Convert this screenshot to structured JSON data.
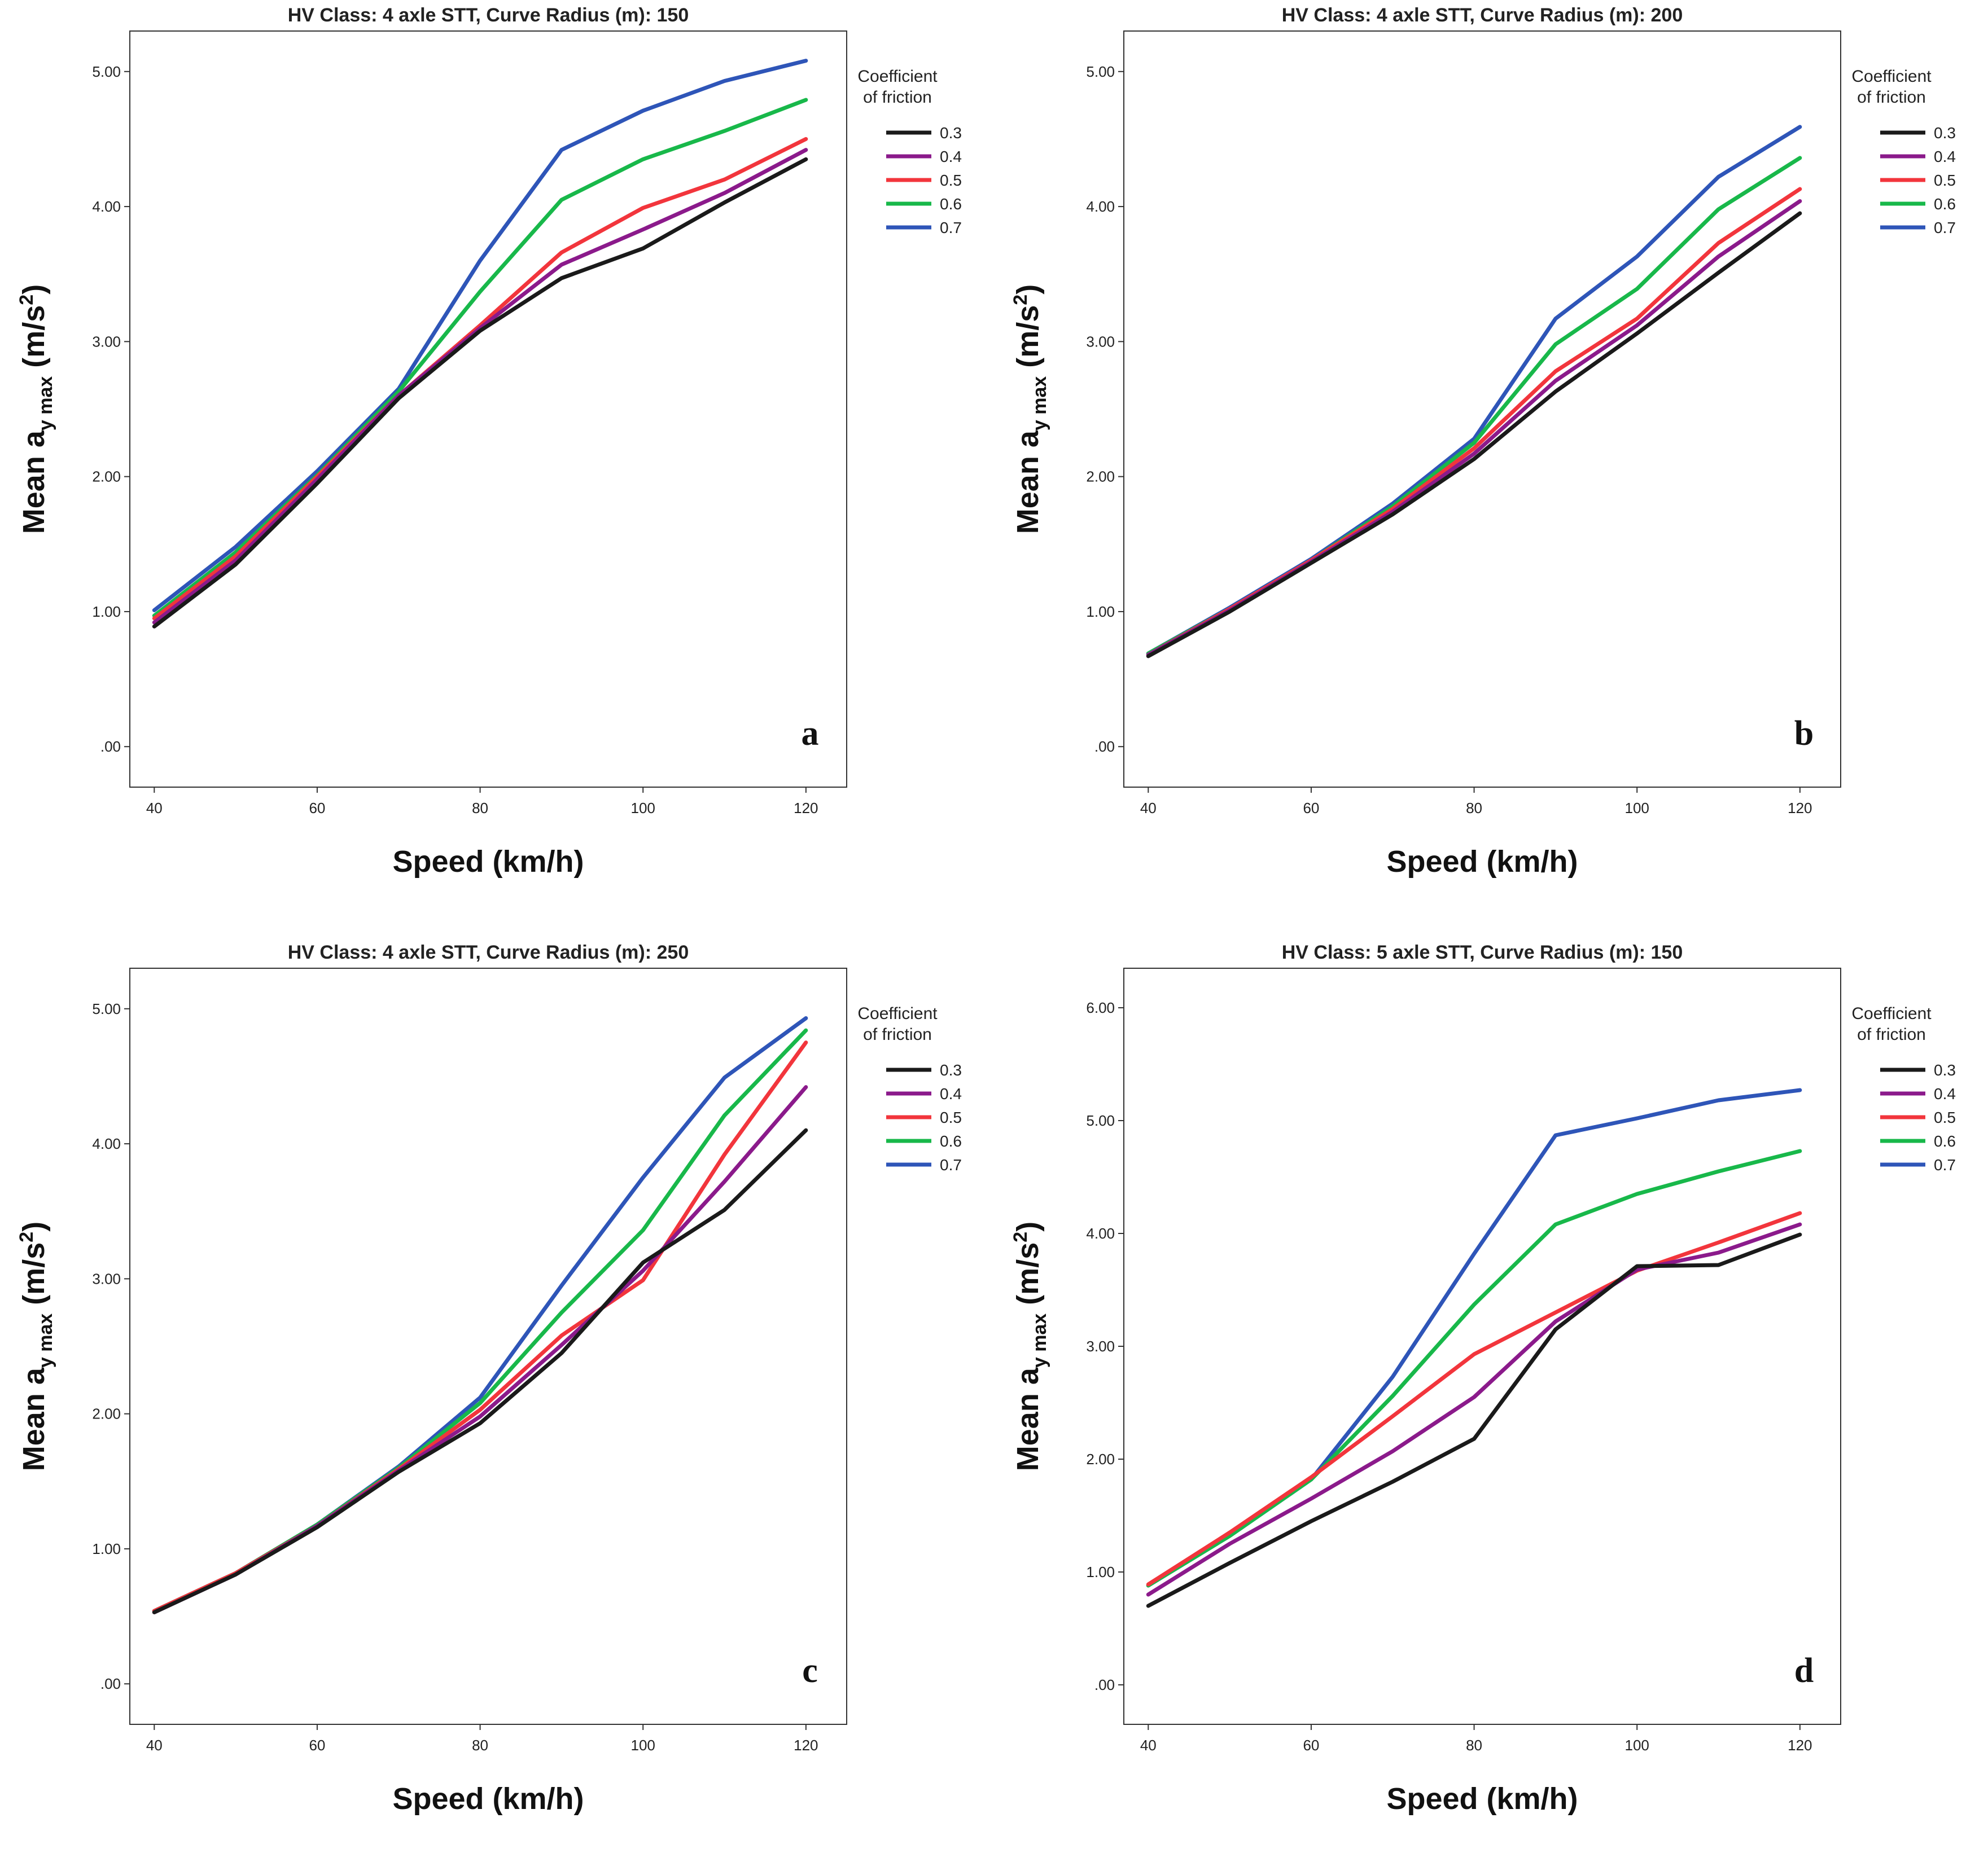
{
  "chart_data": [
    {
      "type": "line",
      "panel_label": "a",
      "title": "HV Class: 4 axle STT, Curve Radius (m): 150",
      "xlabel": "Speed (km/h)",
      "ylabel": "Mean a_y max (m/s²)",
      "ylabel_parts": {
        "main": "Mean a",
        "sub": "y max",
        "unit": " (m/s",
        "sup": "2",
        "close": ")"
      },
      "x": [
        40,
        50,
        60,
        70,
        80,
        90,
        100,
        110,
        120
      ],
      "xlim": [
        37,
        125
      ],
      "ylim": [
        -0.3,
        5.3
      ],
      "xticks": [
        40,
        60,
        80,
        100,
        120
      ],
      "xtick_labels": [
        "40",
        "60",
        "80",
        "100",
        "120"
      ],
      "yticks": [
        0,
        1,
        2,
        3,
        4,
        5
      ],
      "ytick_labels": [
        ".00",
        "1.00",
        "2.00",
        "3.00",
        "4.00",
        "5.00"
      ],
      "legend_title": [
        "Coefficient",
        "of friction"
      ],
      "series": [
        {
          "name": "0.3",
          "color": "#1a1a1a",
          "values": [
            0.89,
            1.35,
            1.95,
            2.58,
            3.08,
            3.47,
            3.69,
            4.03,
            4.35
          ]
        },
        {
          "name": "0.4",
          "color": "#8b1a8b",
          "values": [
            0.92,
            1.38,
            1.98,
            2.6,
            3.1,
            3.57,
            3.83,
            4.1,
            4.42
          ]
        },
        {
          "name": "0.5",
          "color": "#f2353c",
          "values": [
            0.95,
            1.41,
            2.0,
            2.6,
            3.12,
            3.66,
            3.99,
            4.2,
            4.5
          ]
        },
        {
          "name": "0.6",
          "color": "#18b84a",
          "values": [
            0.97,
            1.44,
            2.01,
            2.63,
            3.37,
            4.05,
            4.35,
            4.56,
            4.79
          ]
        },
        {
          "name": "0.7",
          "color": "#2e55b8",
          "values": [
            1.01,
            1.48,
            2.04,
            2.65,
            3.6,
            4.42,
            4.71,
            4.93,
            5.08
          ]
        }
      ]
    },
    {
      "type": "line",
      "panel_label": "b",
      "title": "HV Class: 4 axle STT, Curve Radius (m): 200",
      "xlabel": "Speed (km/h)",
      "ylabel": "Mean a_y max (m/s²)",
      "ylabel_parts": {
        "main": "Mean a",
        "sub": "y max",
        "unit": " (m/s",
        "sup": "2",
        "close": ")"
      },
      "x": [
        40,
        50,
        60,
        70,
        80,
        90,
        100,
        110,
        120
      ],
      "xlim": [
        37,
        125
      ],
      "ylim": [
        -0.3,
        5.3
      ],
      "xticks": [
        40,
        60,
        80,
        100,
        120
      ],
      "xtick_labels": [
        "40",
        "60",
        "80",
        "100",
        "120"
      ],
      "yticks": [
        0,
        1,
        2,
        3,
        4,
        5
      ],
      "ytick_labels": [
        ".00",
        "1.00",
        "2.00",
        "3.00",
        "4.00",
        "5.00"
      ],
      "legend_title": [
        "Coefficient",
        "of friction"
      ],
      "series": [
        {
          "name": "0.3",
          "color": "#1a1a1a",
          "values": [
            0.67,
            1.0,
            1.36,
            1.72,
            2.13,
            2.63,
            3.06,
            3.51,
            3.95
          ]
        },
        {
          "name": "0.4",
          "color": "#8b1a8b",
          "values": [
            0.68,
            1.01,
            1.37,
            1.74,
            2.17,
            2.71,
            3.12,
            3.63,
            4.04
          ]
        },
        {
          "name": "0.5",
          "color": "#f2353c",
          "values": [
            0.68,
            1.02,
            1.38,
            1.76,
            2.21,
            2.78,
            3.17,
            3.73,
            4.13
          ]
        },
        {
          "name": "0.6",
          "color": "#18b84a",
          "values": [
            0.69,
            1.02,
            1.38,
            1.78,
            2.25,
            2.98,
            3.39,
            3.98,
            4.36
          ]
        },
        {
          "name": "0.7",
          "color": "#2e55b8",
          "values": [
            0.69,
            1.03,
            1.39,
            1.8,
            2.28,
            3.17,
            3.63,
            4.22,
            4.59
          ]
        }
      ]
    },
    {
      "type": "line",
      "panel_label": "c",
      "title": "HV Class: 4 axle STT, Curve Radius (m): 250",
      "xlabel": "Speed (km/h)",
      "ylabel": "Mean a_y max (m/s²)",
      "ylabel_parts": {
        "main": "Mean a",
        "sub": "y max",
        "unit": " (m/s",
        "sup": "2",
        "close": ")"
      },
      "x": [
        40,
        50,
        60,
        70,
        80,
        90,
        100,
        110,
        120
      ],
      "xlim": [
        37,
        125
      ],
      "ylim": [
        -0.3,
        5.3
      ],
      "xticks": [
        40,
        60,
        80,
        100,
        120
      ],
      "xtick_labels": [
        "40",
        "60",
        "80",
        "100",
        "120"
      ],
      "yticks": [
        0,
        1,
        2,
        3,
        4,
        5
      ],
      "ytick_labels": [
        ".00",
        "1.00",
        "2.00",
        "3.00",
        "4.00",
        "5.00"
      ],
      "legend_title": [
        "Coefficient",
        "of friction"
      ],
      "series": [
        {
          "name": "0.3",
          "color": "#1a1a1a",
          "values": [
            0.53,
            0.81,
            1.16,
            1.57,
            1.93,
            2.45,
            3.12,
            3.51,
            4.1
          ]
        },
        {
          "name": "0.4",
          "color": "#8b1a8b",
          "values": [
            0.53,
            0.81,
            1.17,
            1.58,
            1.98,
            2.51,
            3.06,
            3.72,
            4.42
          ]
        },
        {
          "name": "0.5",
          "color": "#f2353c",
          "values": [
            0.54,
            0.82,
            1.17,
            1.59,
            2.03,
            2.58,
            2.99,
            3.92,
            4.75
          ]
        },
        {
          "name": "0.6",
          "color": "#18b84a",
          "values": [
            0.54,
            0.82,
            1.18,
            1.6,
            2.08,
            2.75,
            3.36,
            4.21,
            4.84
          ]
        },
        {
          "name": "0.7",
          "color": "#2e55b8",
          "values": [
            0.54,
            0.82,
            1.18,
            1.61,
            2.12,
            2.95,
            3.75,
            4.49,
            4.93
          ]
        }
      ]
    },
    {
      "type": "line",
      "panel_label": "d",
      "title": "HV Class: 5 axle STT, Curve Radius (m): 150",
      "xlabel": "Speed (km/h)",
      "ylabel": "Mean a_y max (m/s²)",
      "ylabel_parts": {
        "main": "Mean a",
        "sub": "y max",
        "unit": " (m/s",
        "sup": "2",
        "close": ")"
      },
      "x": [
        40,
        50,
        60,
        70,
        80,
        90,
        100,
        110,
        120
      ],
      "xlim": [
        37,
        125
      ],
      "ylim": [
        -0.35,
        6.35
      ],
      "xticks": [
        40,
        60,
        80,
        100,
        120
      ],
      "xtick_labels": [
        "40",
        "60",
        "80",
        "100",
        "120"
      ],
      "yticks": [
        0,
        1,
        2,
        3,
        4,
        5,
        6
      ],
      "ytick_labels": [
        ".00",
        "1.00",
        "2.00",
        "3.00",
        "4.00",
        "5.00",
        "6.00"
      ],
      "legend_title": [
        "Coefficient",
        "of friction"
      ],
      "series": [
        {
          "name": "0.3",
          "color": "#1a1a1a",
          "values": [
            0.7,
            1.08,
            1.45,
            1.8,
            2.18,
            3.15,
            3.71,
            3.72,
            3.99
          ]
        },
        {
          "name": "0.4",
          "color": "#8b1a8b",
          "values": [
            0.8,
            1.25,
            1.65,
            2.07,
            2.55,
            3.22,
            3.68,
            3.83,
            4.08
          ]
        },
        {
          "name": "0.5",
          "color": "#f2353c",
          "values": [
            0.89,
            1.35,
            1.84,
            2.38,
            2.93,
            3.3,
            3.67,
            3.92,
            4.18
          ]
        },
        {
          "name": "0.6",
          "color": "#18b84a",
          "values": [
            0.88,
            1.32,
            1.82,
            2.56,
            3.37,
            4.08,
            4.35,
            4.55,
            4.73
          ]
        },
        {
          "name": "0.7",
          "color": "#2e55b8",
          "values": [
            0.88,
            1.32,
            1.82,
            2.73,
            3.82,
            4.87,
            5.02,
            5.18,
            5.27
          ]
        }
      ]
    }
  ]
}
